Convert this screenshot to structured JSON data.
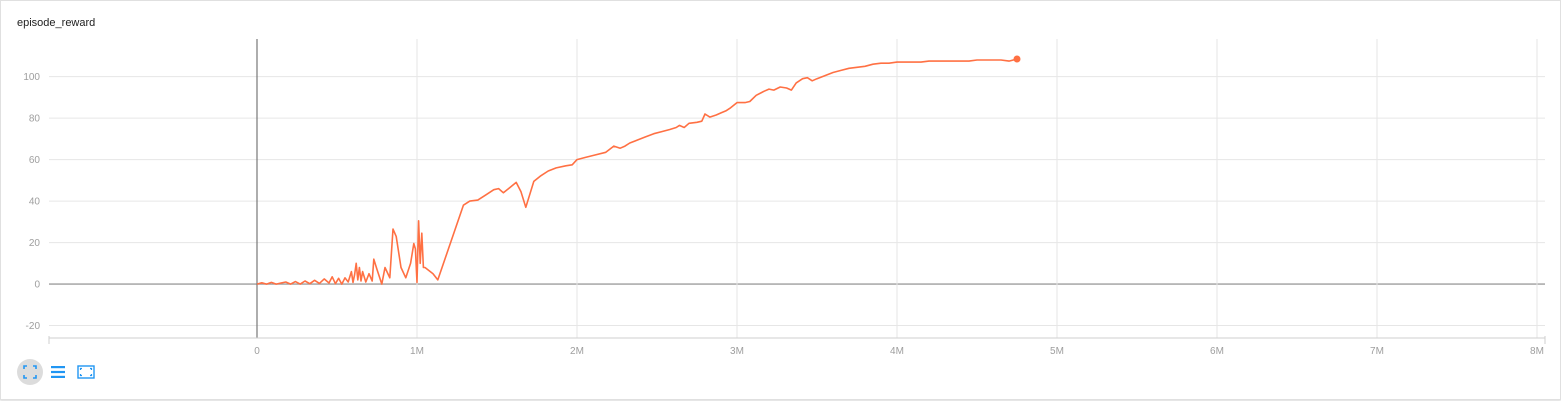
{
  "chart_data": {
    "type": "line",
    "title": "episode_reward",
    "xlabel": "",
    "ylabel": "",
    "xlim": [
      -1300000,
      8050000
    ],
    "ylim": [
      -26,
      122
    ],
    "x_ticks": [
      0,
      1000000,
      2000000,
      3000000,
      4000000,
      5000000,
      6000000,
      7000000,
      8000000
    ],
    "x_tick_labels": [
      "0",
      "1M",
      "2M",
      "3M",
      "4M",
      "5M",
      "6M",
      "7M",
      "8M"
    ],
    "y_ticks": [
      -20,
      0,
      20,
      40,
      60,
      80,
      100
    ],
    "y_tick_labels": [
      "-20",
      "0",
      "20",
      "40",
      "60",
      "80",
      "100"
    ],
    "grid": true,
    "series": [
      {
        "color": "#ff7043",
        "x": [
          0,
          30000,
          60000,
          90000,
          120000,
          150000,
          180000,
          210000,
          240000,
          270000,
          300000,
          330000,
          360000,
          390000,
          420000,
          450000,
          470000,
          490000,
          510000,
          530000,
          550000,
          570000,
          590000,
          600000,
          610000,
          620000,
          630000,
          640000,
          650000,
          660000,
          680000,
          700000,
          720000,
          730000,
          750000,
          780000,
          800000,
          830000,
          850000,
          870000,
          900000,
          930000,
          960000,
          980000,
          990000,
          1000000,
          1010000,
          1020000,
          1030000,
          1040000,
          1050000,
          1100000,
          1130000,
          1290000,
          1330000,
          1380000,
          1430000,
          1480000,
          1510000,
          1540000,
          1580000,
          1620000,
          1650000,
          1680000,
          1730000,
          1770000,
          1820000,
          1870000,
          1930000,
          1970000,
          2000000,
          2050000,
          2100000,
          2180000,
          2230000,
          2270000,
          2300000,
          2330000,
          2380000,
          2430000,
          2480000,
          2530000,
          2580000,
          2620000,
          2640000,
          2670000,
          2700000,
          2750000,
          2780000,
          2800000,
          2830000,
          2870000,
          2900000,
          2930000,
          2960000,
          3000000,
          3050000,
          3080000,
          3120000,
          3170000,
          3200000,
          3230000,
          3270000,
          3310000,
          3340000,
          3370000,
          3410000,
          3440000,
          3470000,
          3500000,
          3550000,
          3600000,
          3650000,
          3700000,
          3750000,
          3800000,
          3850000,
          3900000,
          3950000,
          4000000,
          4050000,
          4100000,
          4150000,
          4200000,
          4250000,
          4300000,
          4350000,
          4400000,
          4450000,
          4500000,
          4550000,
          4600000,
          4650000,
          4700000,
          4750000
        ],
        "y": [
          0,
          0.6,
          0,
          0.8,
          0,
          0.5,
          1,
          0,
          1.2,
          0,
          1.5,
          0.2,
          1.8,
          0.3,
          2.5,
          0.5,
          3.5,
          0.2,
          2.8,
          0,
          3,
          1,
          6,
          0.8,
          4.5,
          10,
          2,
          8,
          1.5,
          6,
          1,
          5,
          1.5,
          12,
          7,
          0,
          8,
          3,
          26.5,
          23,
          8,
          3,
          10,
          19.5,
          17,
          0.8,
          30.5,
          10,
          24.5,
          8,
          8,
          5,
          2,
          38,
          40,
          40.5,
          43,
          45.5,
          46,
          44,
          46.5,
          49,
          44.5,
          37,
          49.5,
          52,
          54.5,
          56,
          57,
          57.5,
          60,
          61,
          62,
          63.5,
          66.5,
          65.5,
          66.5,
          68,
          69.5,
          71,
          72.5,
          73.5,
          74.5,
          75.5,
          76.5,
          75.5,
          77.5,
          78,
          78.5,
          82,
          80.5,
          81.5,
          82.5,
          83.5,
          85,
          87.5,
          87.5,
          88,
          91,
          93,
          94,
          93.5,
          95,
          94.5,
          93.5,
          97,
          99,
          99.5,
          98,
          99,
          100.5,
          102,
          103,
          104,
          104.5,
          105,
          106,
          106.5,
          106.5,
          107,
          107,
          107,
          107,
          107.5,
          107.5,
          107.5,
          107.5,
          107.5,
          107.5,
          108,
          108,
          108,
          108,
          107.5,
          108.5
        ]
      }
    ]
  },
  "toolbar": {
    "buttons": [
      {
        "icon": "fit-domain-icon",
        "active": true
      },
      {
        "icon": "list-icon",
        "active": false
      },
      {
        "icon": "expand-chart-icon",
        "active": false
      }
    ]
  }
}
